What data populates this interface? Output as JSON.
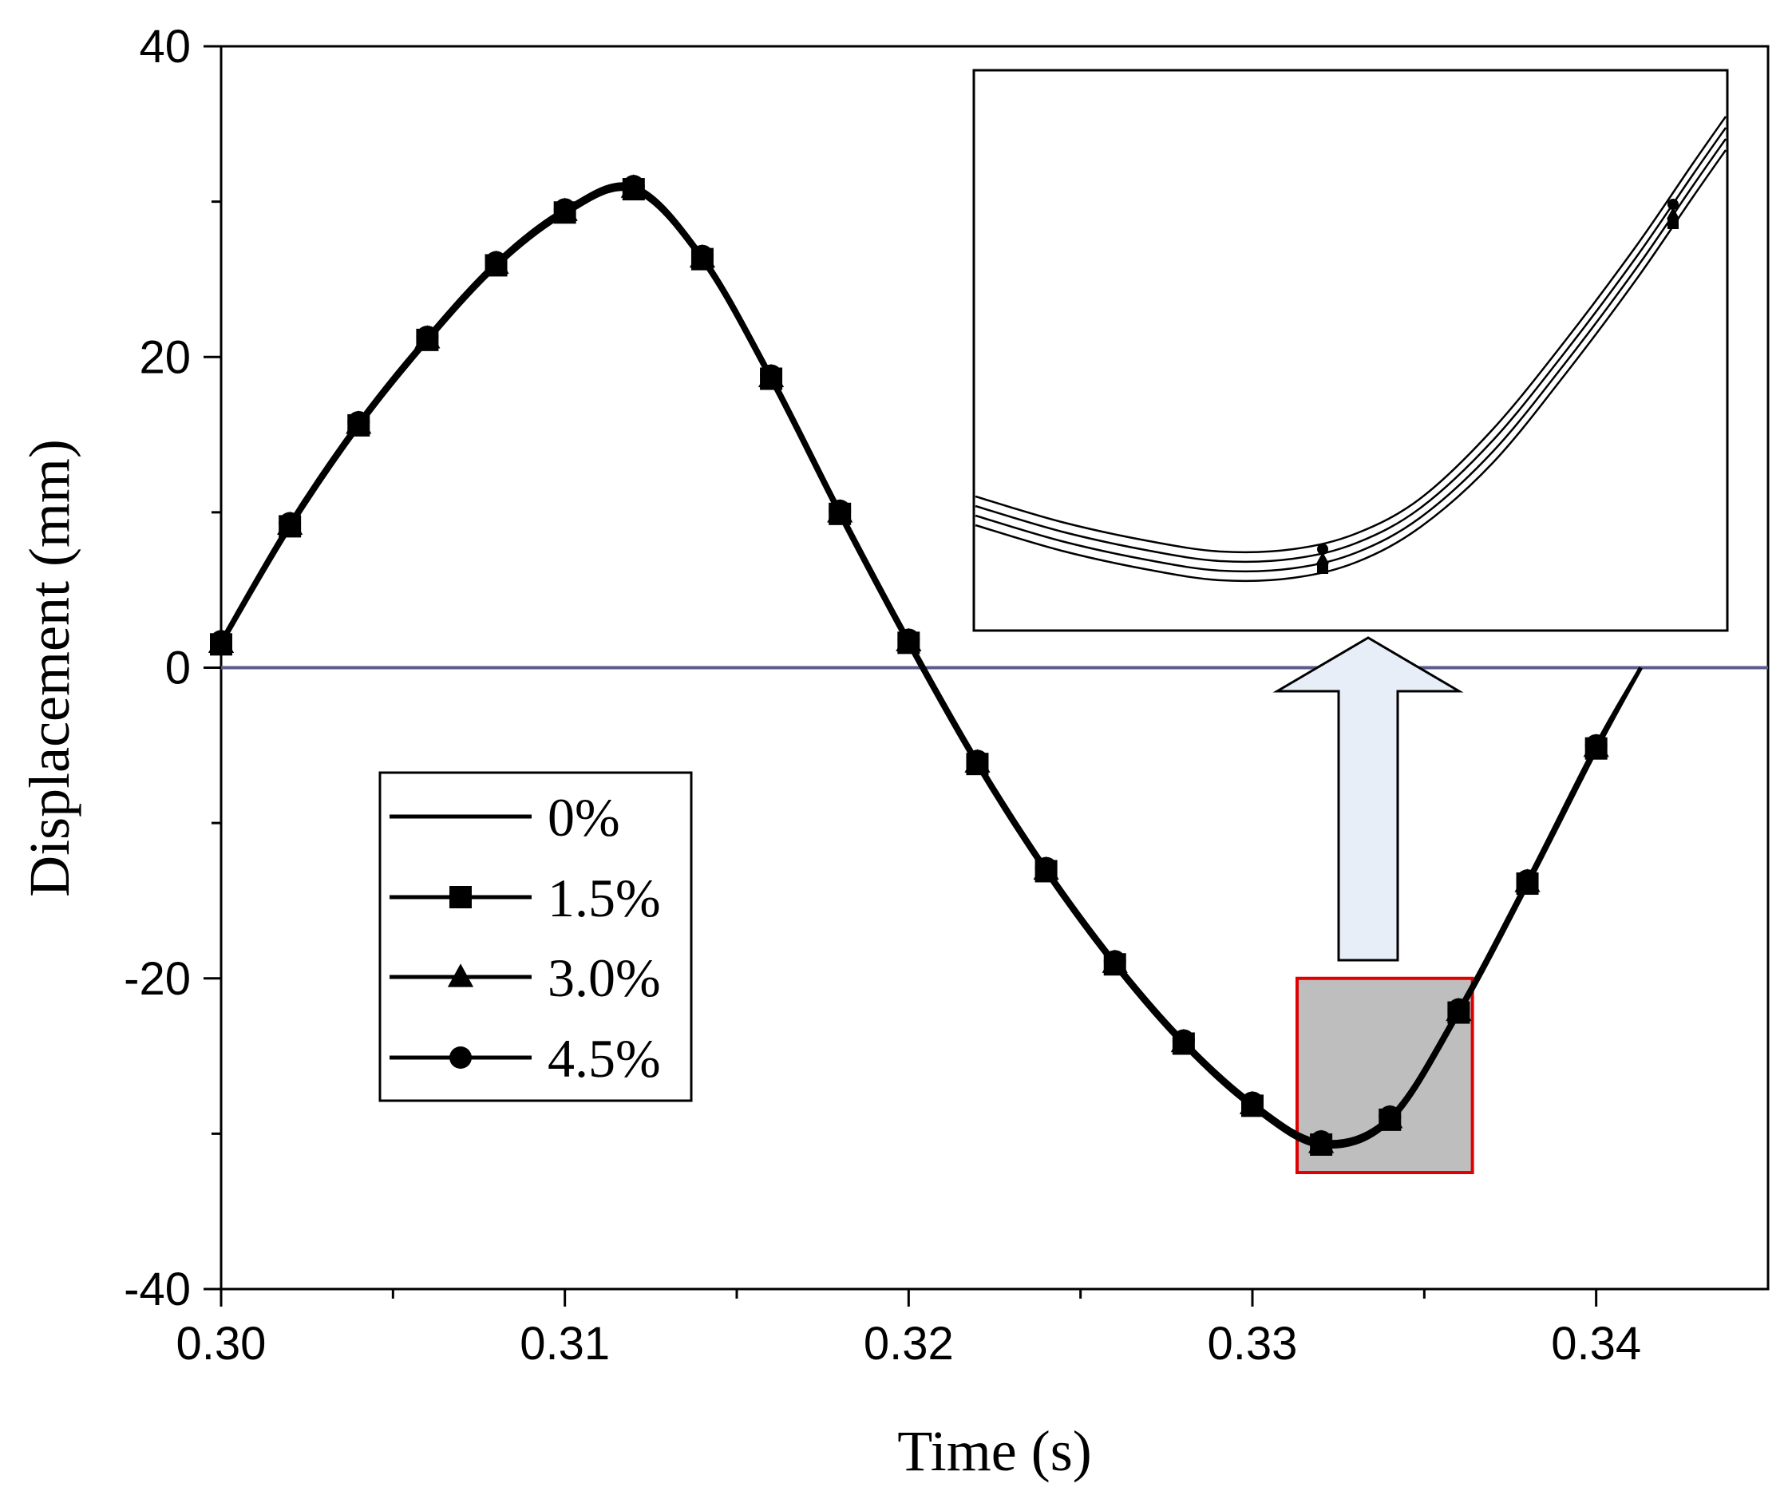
{
  "chart_data": {
    "type": "line",
    "xlabel": "Time (s)",
    "ylabel": "Displacement (mm)",
    "xlim": [
      0.3,
      0.345
    ],
    "ylim": [
      -40,
      40
    ],
    "x_ticks": [
      0.3,
      0.31,
      0.32,
      0.33,
      0.34
    ],
    "x_tick_labels": [
      "0.30",
      "0.31",
      "0.32",
      "0.33",
      "0.34"
    ],
    "y_ticks": [
      40,
      20,
      0,
      -20,
      -40
    ],
    "y_tick_labels": [
      "40",
      "20",
      "0",
      "-20",
      "-40"
    ],
    "reference_line_y": 0,
    "reference_line_color": "#5a5a8c",
    "line_color": "#000000",
    "x": [
      0.3,
      0.302,
      0.304,
      0.306,
      0.308,
      0.31,
      0.312,
      0.314,
      0.316,
      0.318,
      0.32,
      0.322,
      0.324,
      0.326,
      0.328,
      0.33,
      0.332,
      0.334,
      0.336,
      0.338,
      0.34,
      0.3413
    ],
    "series": [
      {
        "name": "0%",
        "marker": "none",
        "values": [
          1.5,
          9.0,
          15.5,
          21.0,
          25.8,
          29.2,
          30.7,
          26.2,
          18.5,
          9.8,
          1.5,
          -6.3,
          -13.2,
          -19.2,
          -24.3,
          -28.3,
          -30.8,
          -29.2,
          -22.3,
          -14.0,
          -5.3,
          0
        ]
      },
      {
        "name": "1.5%",
        "marker": "square",
        "values": [
          1.5,
          9.1,
          15.6,
          21.1,
          25.9,
          29.3,
          30.8,
          26.3,
          18.6,
          9.9,
          1.6,
          -6.2,
          -13.1,
          -19.1,
          -24.2,
          -28.2,
          -30.7,
          -29.1,
          -22.2,
          -13.9,
          -5.2,
          0
        ]
      },
      {
        "name": "3.0%",
        "marker": "triangle",
        "values": [
          1.6,
          9.2,
          15.7,
          21.2,
          26.0,
          29.4,
          30.9,
          26.4,
          18.7,
          10.0,
          1.7,
          -6.1,
          -13.0,
          -19.0,
          -24.1,
          -28.1,
          -30.6,
          -29.0,
          -22.1,
          -13.8,
          -5.1,
          0
        ]
      },
      {
        "name": "4.5%",
        "marker": "circle",
        "values": [
          1.7,
          9.3,
          15.8,
          21.3,
          26.1,
          29.5,
          31.0,
          26.5,
          18.8,
          10.1,
          1.8,
          -6.0,
          -12.9,
          -18.9,
          -24.0,
          -28.0,
          -30.5,
          -28.9,
          -22.0,
          -13.7,
          -5.0,
          0
        ]
      }
    ],
    "highlight_box": {
      "x_range": [
        0.3313,
        0.3364
      ],
      "y_range": [
        -32.5,
        -20
      ],
      "fill": "#bebebe",
      "stroke": "#e00000"
    },
    "arrow_fill": "#e8eef7",
    "inset": {
      "description_free": true,
      "curve_offsets": [
        0,
        1,
        2,
        3
      ]
    }
  }
}
